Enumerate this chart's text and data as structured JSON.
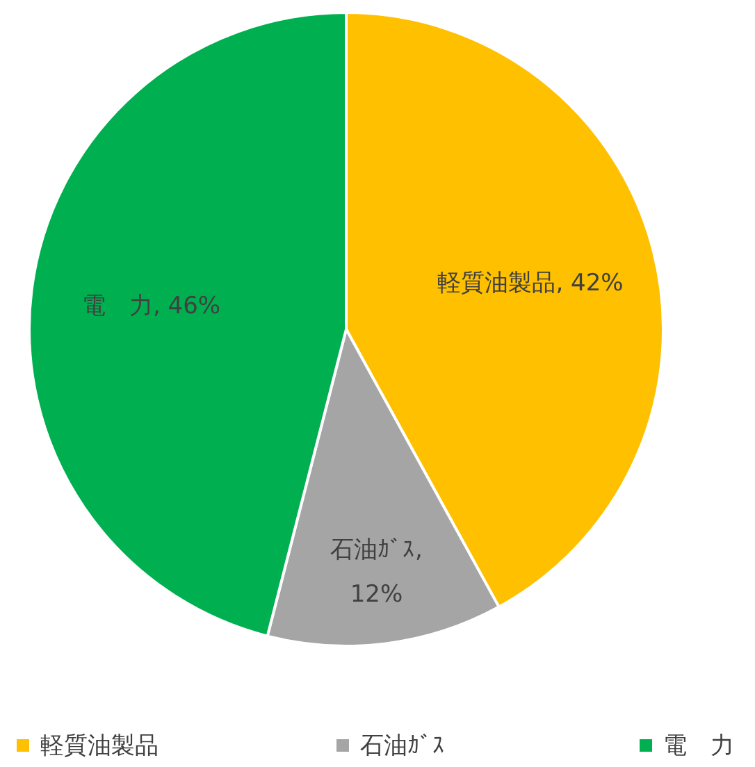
{
  "chart_data": {
    "type": "pie",
    "categories": [
      "軽質油製品",
      "石油ｶﾞｽ",
      "電　力"
    ],
    "values": [
      42,
      12,
      46
    ],
    "value_labels": [
      "軽質油製品, 42%",
      "石油ｶﾞｽ, 12%",
      "電　力, 46%"
    ],
    "colors": [
      "#ffc000",
      "#a5a5a5",
      "#00b050"
    ],
    "legend": "bottom"
  }
}
